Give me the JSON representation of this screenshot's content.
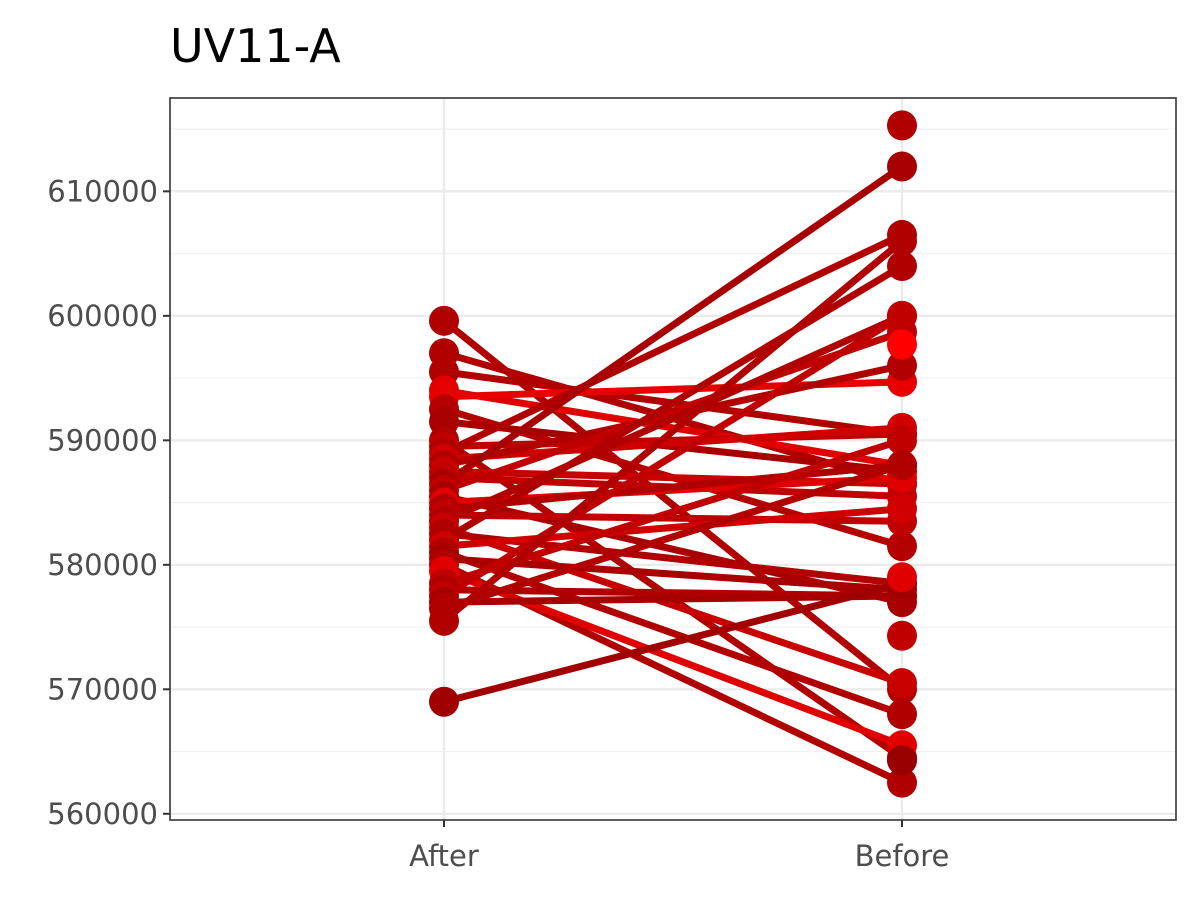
{
  "chart_data": {
    "type": "line",
    "title": "UV11-A",
    "xlabel": "",
    "ylabel": "",
    "categories": [
      "After",
      "Before"
    ],
    "ylim": [
      559500,
      617500
    ],
    "yticks": [
      560000,
      570000,
      580000,
      590000,
      600000,
      610000
    ],
    "ytick_labels": [
      "560000",
      "570000",
      "580000",
      "590000",
      "600000",
      "610000"
    ],
    "grid": true,
    "legend": "none",
    "colors": {
      "dark": "#990000",
      "mid": "#bb0000",
      "bright": "#e80000"
    },
    "series": [
      {
        "values": [
          599600,
          570000
        ],
        "color": "#b00000"
      },
      {
        "values": [
          597000,
          586500
        ],
        "color": "#b00000"
      },
      {
        "values": [
          595500,
          590500
        ],
        "color": "#b00000"
      },
      {
        "values": [
          594000,
          588000
        ],
        "color": "#e00000"
      },
      {
        "values": [
          593500,
          594700
        ],
        "color": "#e60000"
      },
      {
        "values": [
          592500,
          581500
        ],
        "color": "#b50000"
      },
      {
        "values": [
          591500,
          587500
        ],
        "color": "#a80000"
      },
      {
        "values": [
          590000,
          564500
        ],
        "color": "#b00000"
      },
      {
        "values": [
          589500,
          590500
        ],
        "color": "#c00000"
      },
      {
        "values": [
          589000,
          606500
        ],
        "color": "#b00000"
      },
      {
        "values": [
          588500,
          591000
        ],
        "color": "#d00000"
      },
      {
        "values": [
          588000,
          596000
        ],
        "color": "#b00000"
      },
      {
        "values": [
          587500,
          586500
        ],
        "color": "#c80000"
      },
      {
        "values": [
          587000,
          585500
        ],
        "color": "#c00000"
      },
      {
        "values": [
          586500,
          612000
        ],
        "color": "#a80000"
      },
      {
        "values": [
          586000,
          598700
        ],
        "color": "#c00000"
      },
      {
        "values": [
          585500,
          577000
        ],
        "color": "#a80000"
      },
      {
        "values": [
          585000,
          587000
        ],
        "color": "#e00000"
      },
      {
        "values": [
          584500,
          588000
        ],
        "color": "#b00000"
      },
      {
        "values": [
          584000,
          583500
        ],
        "color": "#c00000"
      },
      {
        "values": [
          583500,
          600000
        ],
        "color": "#b00000"
      },
      {
        "values": [
          583000,
          570500
        ],
        "color": "#c80000"
      },
      {
        "values": [
          582500,
          578500
        ],
        "color": "#b00000"
      },
      {
        "values": [
          582000,
          604000
        ],
        "color": "#b00000"
      },
      {
        "values": [
          581500,
          584500
        ],
        "color": "#d00000"
      },
      {
        "values": [
          581000,
          568000
        ],
        "color": "#b00000"
      },
      {
        "values": [
          580500,
          578000
        ],
        "color": "#a80000"
      },
      {
        "values": [
          580000,
          562500
        ],
        "color": "#b00000"
      },
      {
        "values": [
          579500,
          565500
        ],
        "color": "#e00000"
      },
      {
        "values": [
          578500,
          590000
        ],
        "color": "#c00000"
      },
      {
        "values": [
          578000,
          577500
        ],
        "color": "#b00000"
      },
      {
        "values": [
          577500,
          600000
        ],
        "color": "#c00000"
      },
      {
        "values": [
          577000,
          577500
        ],
        "color": "#a80000"
      },
      {
        "values": [
          576500,
          588000
        ],
        "color": "#b00000"
      },
      {
        "values": [
          575500,
          606000
        ],
        "color": "#b00000"
      },
      {
        "values": [
          569000,
          578500
        ],
        "color": "#a00000"
      }
    ],
    "extra_points": [
      {
        "category": "Before",
        "value": 615300,
        "color": "#b00000"
      },
      {
        "category": "Before",
        "value": 574300,
        "color": "#c00000"
      },
      {
        "category": "Before",
        "value": 564300,
        "color": "#990000"
      },
      {
        "category": "Before",
        "value": 597700,
        "color": "#ff0000"
      },
      {
        "category": "Before",
        "value": 579000,
        "color": "#e00000"
      }
    ]
  }
}
